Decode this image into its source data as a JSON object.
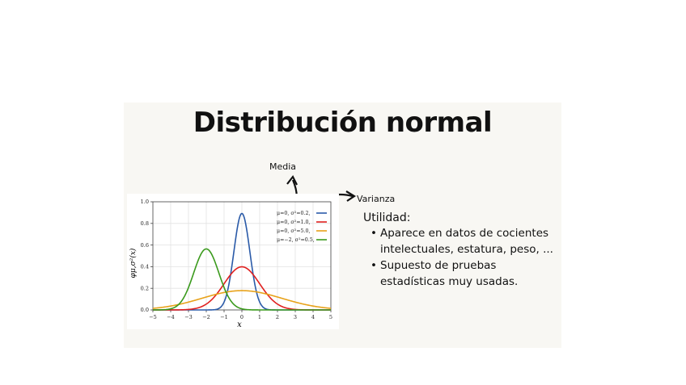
{
  "slide": {
    "title": "Distribución normal",
    "label_media": "Media",
    "label_varianza": "Varianza",
    "utility_title": "Utilidad:",
    "bullets": [
      "Aparece en datos de cocientes intelectuales, estatura, peso, ...",
      "Supuesto de pruebas estadísticas muy usadas."
    ]
  },
  "chart_data": {
    "type": "line",
    "xlabel": "x",
    "ylabel": "φμ,σ²(x)",
    "xlim": [
      -5,
      5
    ],
    "ylim": [
      0,
      1.0
    ],
    "xticks": [
      -5,
      -4,
      -3,
      -2,
      -1,
      0,
      1,
      2,
      3,
      4,
      5
    ],
    "yticks": [
      0.0,
      0.2,
      0.4,
      0.6,
      0.8,
      1.0
    ],
    "grid": true,
    "legend_position": "top-right",
    "series": [
      {
        "name": "μ=0,   σ²=0.2,",
        "mu": 0,
        "variance": 0.2,
        "color": "#2a5aa8"
      },
      {
        "name": "μ=0,   σ²=1.0,",
        "mu": 0,
        "variance": 1.0,
        "color": "#e0201f"
      },
      {
        "name": "μ=0,   σ²=5.0,",
        "mu": 0,
        "variance": 5.0,
        "color": "#e8a21a"
      },
      {
        "name": "μ=−2,  σ²=0.5,",
        "mu": -2,
        "variance": 0.5,
        "color": "#3a9a1c"
      }
    ]
  }
}
